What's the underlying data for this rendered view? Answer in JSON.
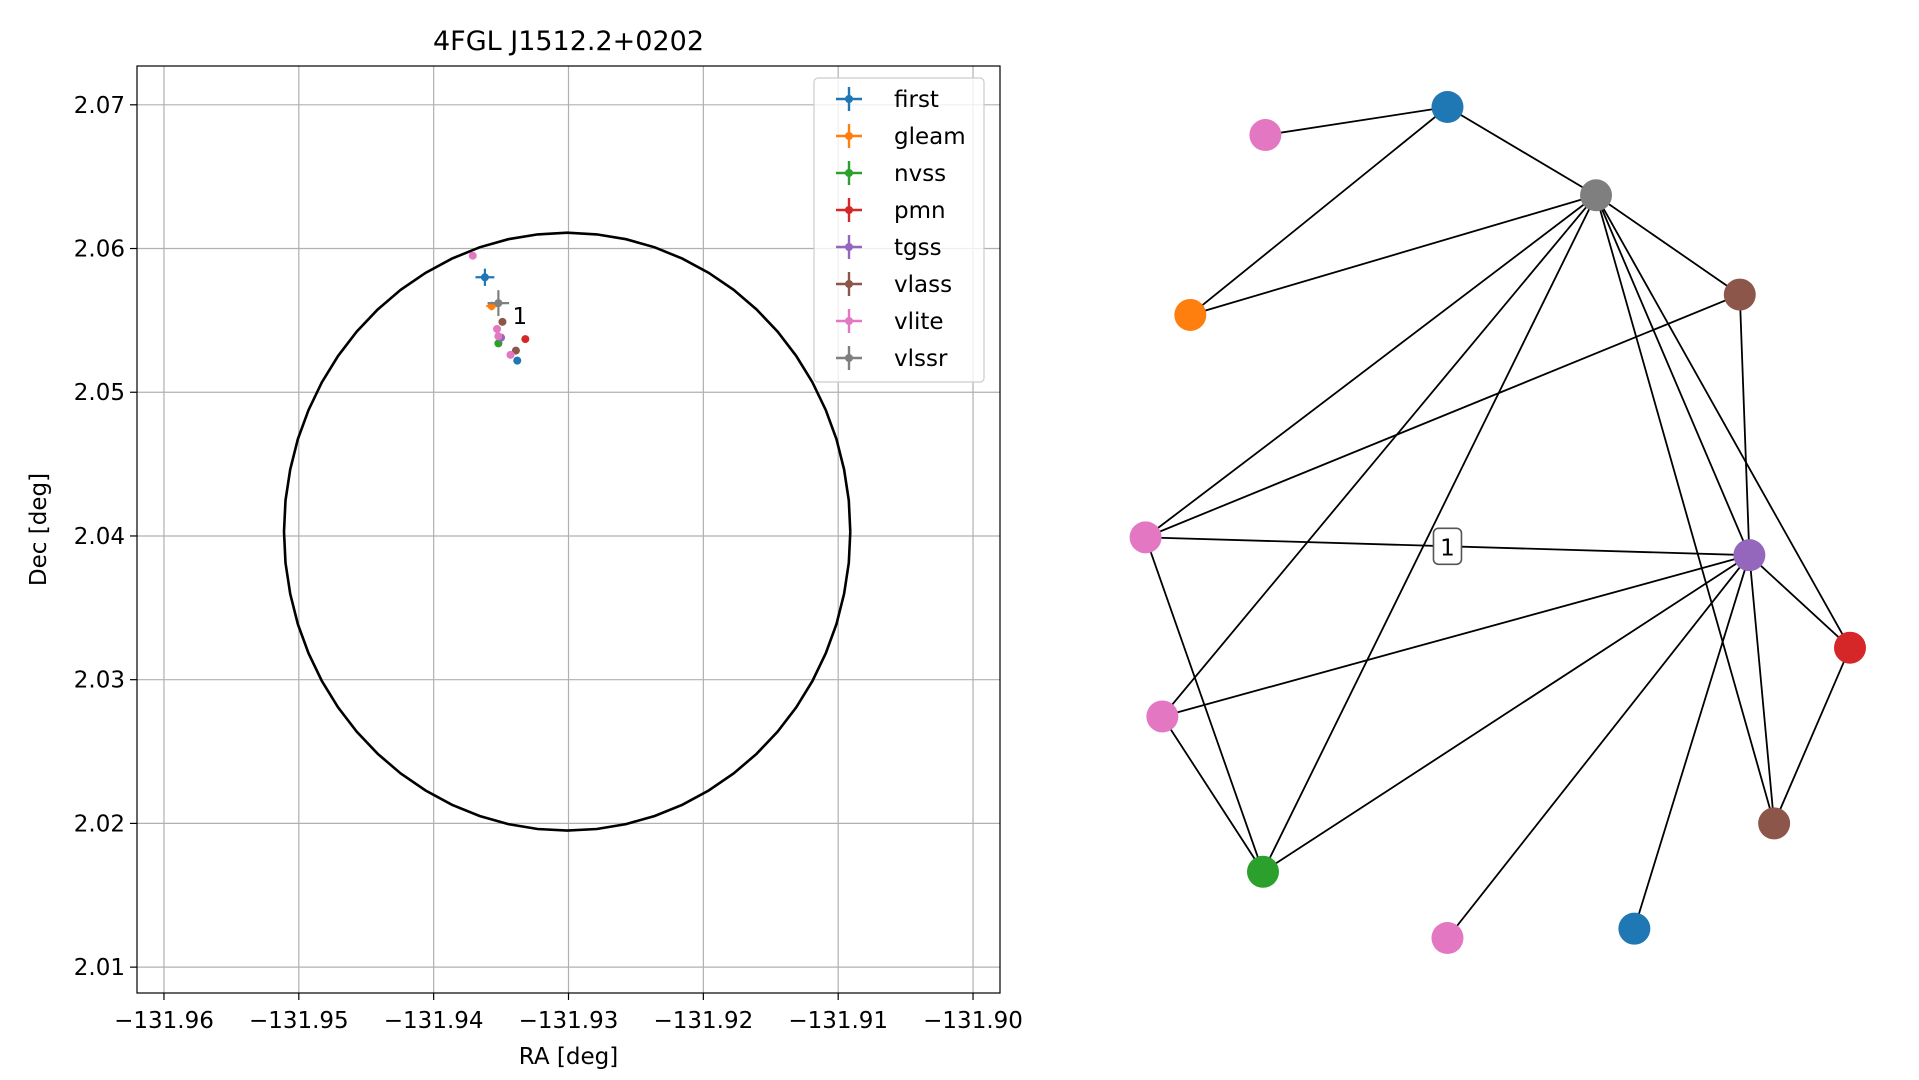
{
  "chart_data": [
    {
      "type": "scatter",
      "title": "4FGL J1512.2+0202",
      "xlabel": "RA [deg]",
      "ylabel": "Dec [deg]",
      "xlim": [
        -131.962,
        -131.898
      ],
      "ylim": [
        2.0082,
        2.0727
      ],
      "xticks": [
        -131.96,
        -131.95,
        -131.94,
        -131.93,
        -131.92,
        -131.91,
        -131.9
      ],
      "xtick_labels": [
        "−131.96",
        "−131.95",
        "−131.94",
        "−131.93",
        "−131.92",
        "−131.91",
        "−131.90"
      ],
      "yticks": [
        2.01,
        2.02,
        2.03,
        2.04,
        2.05,
        2.06,
        2.07
      ],
      "ytick_labels": [
        "2.01",
        "2.02",
        "2.03",
        "2.04",
        "2.05",
        "2.06",
        "2.07"
      ],
      "grid": true,
      "legend_position": "top-right",
      "ellipse": {
        "center_ra": -131.9301,
        "center_dec": 2.0403,
        "semi_ra": 0.021,
        "semi_dec": 0.0208
      },
      "series": [
        {
          "name": "first",
          "color": "#1f77b4",
          "points": [
            {
              "ra": -131.9362,
              "dec": 2.058,
              "err_ra": 0.0007,
              "err_dec": 0.0006
            },
            {
              "ra": -131.9338,
              "dec": 2.0522,
              "err_ra": 0,
              "err_dec": 0
            }
          ]
        },
        {
          "name": "gleam",
          "color": "#ff7f0e",
          "points": [
            {
              "ra": -131.9357,
              "dec": 2.056,
              "err_ra": 0.0004,
              "err_dec": 0.0003
            }
          ]
        },
        {
          "name": "nvss",
          "color": "#2ca02c",
          "points": [
            {
              "ra": -131.9352,
              "dec": 2.0534,
              "err_ra": 0,
              "err_dec": 0
            }
          ]
        },
        {
          "name": "pmn",
          "color": "#d62728",
          "points": [
            {
              "ra": -131.9332,
              "dec": 2.0537,
              "err_ra": 0,
              "err_dec": 0
            }
          ]
        },
        {
          "name": "tgss",
          "color": "#9467bd",
          "points": [
            {
              "ra": -131.935,
              "dec": 2.0538,
              "err_ra": 0,
              "err_dec": 0
            }
          ]
        },
        {
          "name": "vlass",
          "color": "#8c564b",
          "points": [
            {
              "ra": -131.9349,
              "dec": 2.0549,
              "err_ra": 0,
              "err_dec": 0
            },
            {
              "ra": -131.9339,
              "dec": 2.0529,
              "err_ra": 0,
              "err_dec": 0
            }
          ]
        },
        {
          "name": "vlite",
          "color": "#e377c2",
          "points": [
            {
              "ra": -131.9371,
              "dec": 2.0595,
              "err_ra": 0,
              "err_dec": 0
            },
            {
              "ra": -131.9353,
              "dec": 2.0544,
              "err_ra": 0,
              "err_dec": 0
            },
            {
              "ra": -131.9352,
              "dec": 2.0539,
              "err_ra": 0,
              "err_dec": 0
            },
            {
              "ra": -131.9343,
              "dec": 2.0526,
              "err_ra": 0,
              "err_dec": 0
            }
          ]
        },
        {
          "name": "vlssr",
          "color": "#7f7f7f",
          "points": [
            {
              "ra": -131.9352,
              "dec": 2.0562,
              "err_ra": 0.0008,
              "err_dec": 0.0009
            }
          ]
        }
      ],
      "annotations": [
        {
          "text": "1",
          "ra": -131.9346,
          "dec": 2.0553
        }
      ]
    },
    {
      "type": "network",
      "nodes": [
        {
          "id": 0,
          "color": "#1f77b4",
          "x": 0.385,
          "y": 0.922
        },
        {
          "id": 1,
          "color": "#e377c2",
          "x": 0.157,
          "y": 0.889
        },
        {
          "id": 2,
          "color": "#7f7f7f",
          "x": 0.571,
          "y": 0.818
        },
        {
          "id": 3,
          "color": "#8c564b",
          "x": 0.751,
          "y": 0.701
        },
        {
          "id": 4,
          "color": "#ff7f0e",
          "x": 0.063,
          "y": 0.677
        },
        {
          "id": 5,
          "color": "#e377c2",
          "x": 0.007,
          "y": 0.415
        },
        {
          "id": 6,
          "color": "#9467bd",
          "x": 0.763,
          "y": 0.394
        },
        {
          "id": 7,
          "color": "#d62728",
          "x": 0.889,
          "y": 0.285
        },
        {
          "id": 8,
          "color": "#e377c2",
          "x": 0.028,
          "y": 0.204
        },
        {
          "id": 9,
          "color": "#8c564b",
          "x": 0.794,
          "y": 0.078
        },
        {
          "id": 10,
          "color": "#2ca02c",
          "x": 0.154,
          "y": 0.021
        },
        {
          "id": 11,
          "color": "#1f77b4",
          "x": 0.619,
          "y": -0.046
        },
        {
          "id": 12,
          "color": "#e377c2",
          "x": 0.385,
          "y": -0.057
        }
      ],
      "edges": [
        [
          1,
          0
        ],
        [
          0,
          4
        ],
        [
          0,
          2
        ],
        [
          2,
          4
        ],
        [
          2,
          3
        ],
        [
          2,
          5
        ],
        [
          2,
          8
        ],
        [
          2,
          10
        ],
        [
          2,
          6
        ],
        [
          2,
          7
        ],
        [
          2,
          9
        ],
        [
          3,
          5
        ],
        [
          3,
          6
        ],
        [
          5,
          6
        ],
        [
          5,
          10
        ],
        [
          8,
          6
        ],
        [
          8,
          10
        ],
        [
          10,
          6
        ],
        [
          6,
          12
        ],
        [
          6,
          11
        ],
        [
          6,
          9
        ],
        [
          6,
          7
        ],
        [
          7,
          9
        ]
      ],
      "edge_labels": [
        {
          "edge": [
            5,
            6
          ],
          "text": "1"
        }
      ]
    }
  ]
}
